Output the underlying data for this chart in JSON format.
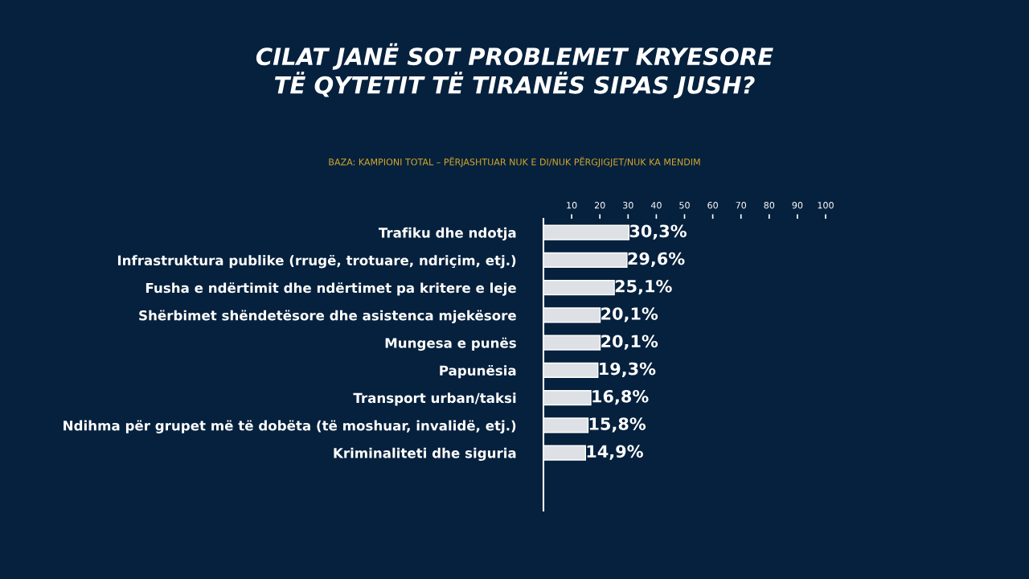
{
  "chart_data": {
    "type": "bar",
    "orientation": "horizontal",
    "title": "CILAT JANË SOT PROBLEMET KRYESORE\nTË QYTETIT TË TIRANËS SIPAS JUSH?",
    "subtitle": "BAZA: KAMPIONI TOTAL – PËRJASHTUAR NUK E DI/NUK PËRGJIGJET/NUK KA MENDIM",
    "categories": [
      "Trafiku dhe ndotja",
      "Infrastruktura publike (rrugë, trotuare, ndriçim, etj.)",
      "Fusha e ndërtimit dhe ndërtimet pa kritere e leje",
      "Shërbimet shëndetësore dhe asistenca mjekësore",
      "Mungesa e punës",
      "Papunësia",
      "Transport urban/taksi",
      "Ndihma për grupet më të dobëta (të moshuar, invalidë, etj.)",
      "Kriminaliteti dhe siguria"
    ],
    "values": [
      30.3,
      29.6,
      25.1,
      20.1,
      20.1,
      19.3,
      16.8,
      15.8,
      14.9
    ],
    "value_labels": [
      "30,3%",
      "29,6%",
      "25,1%",
      "20,1%",
      "20,1%",
      "19,3%",
      "16,8%",
      "15,8%",
      "14,9%"
    ],
    "color": "#dde0e4",
    "xlim": [
      0,
      100
    ],
    "xticks": [
      10,
      20,
      30,
      40,
      50,
      60,
      70,
      80,
      90,
      100
    ],
    "grid": false,
    "legend": false
  }
}
